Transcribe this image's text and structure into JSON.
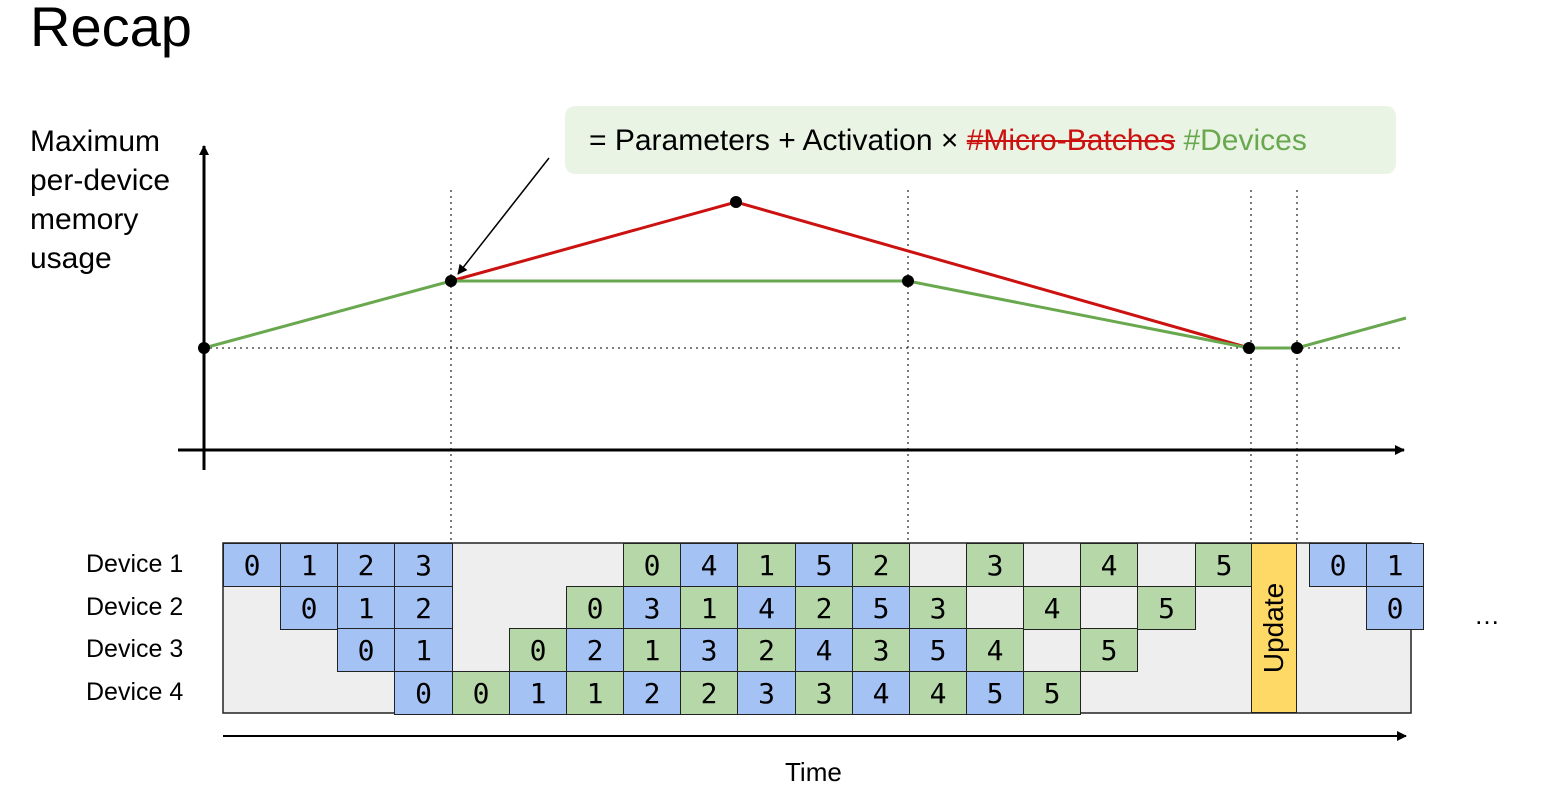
{
  "title": "Recap",
  "y_axis_label": "Maximum\nper-device\nmemory\nusage",
  "formula": {
    "prefix": "= Parameters + Activation × ",
    "struck": "#Micro-Batches",
    "replacement": "#Devices"
  },
  "colors": {
    "forward": "#a4c2f4",
    "backward": "#b6d7a8",
    "update": "#ffd966",
    "red_line": "#cc1111",
    "green_line": "#6aa84f",
    "formula_bg": "#eaf4e4"
  },
  "schedule": {
    "devices": [
      "Device 1",
      "Device 2",
      "Device 3",
      "Device 4"
    ],
    "update_label": "Update",
    "ellipsis": "…",
    "time_label": "Time",
    "rows": [
      [
        {
          "s": 0,
          "t": "F",
          "v": "0"
        },
        {
          "s": 1,
          "t": "F",
          "v": "1"
        },
        {
          "s": 2,
          "t": "F",
          "v": "2"
        },
        {
          "s": 3,
          "t": "F",
          "v": "3"
        },
        {
          "s": 7,
          "t": "B",
          "v": "0"
        },
        {
          "s": 8,
          "t": "F",
          "v": "4"
        },
        {
          "s": 9,
          "t": "B",
          "v": "1"
        },
        {
          "s": 10,
          "t": "F",
          "v": "5"
        },
        {
          "s": 11,
          "t": "B",
          "v": "2"
        },
        {
          "s": 13,
          "t": "B",
          "v": "3"
        },
        {
          "s": 15,
          "t": "B",
          "v": "4"
        },
        {
          "s": 17,
          "t": "B",
          "v": "5"
        },
        {
          "s": 19,
          "t": "F",
          "v": "0"
        },
        {
          "s": 20,
          "t": "F",
          "v": "1"
        }
      ],
      [
        {
          "s": 1,
          "t": "F",
          "v": "0"
        },
        {
          "s": 2,
          "t": "F",
          "v": "1"
        },
        {
          "s": 3,
          "t": "F",
          "v": "2"
        },
        {
          "s": 6,
          "t": "B",
          "v": "0"
        },
        {
          "s": 7,
          "t": "F",
          "v": "3"
        },
        {
          "s": 8,
          "t": "B",
          "v": "1"
        },
        {
          "s": 9,
          "t": "F",
          "v": "4"
        },
        {
          "s": 10,
          "t": "B",
          "v": "2"
        },
        {
          "s": 11,
          "t": "F",
          "v": "5"
        },
        {
          "s": 12,
          "t": "B",
          "v": "3"
        },
        {
          "s": 14,
          "t": "B",
          "v": "4"
        },
        {
          "s": 16,
          "t": "B",
          "v": "5"
        },
        {
          "s": 20,
          "t": "F",
          "v": "0"
        }
      ],
      [
        {
          "s": 2,
          "t": "F",
          "v": "0"
        },
        {
          "s": 3,
          "t": "F",
          "v": "1"
        },
        {
          "s": 5,
          "t": "B",
          "v": "0"
        },
        {
          "s": 6,
          "t": "F",
          "v": "2"
        },
        {
          "s": 7,
          "t": "B",
          "v": "1"
        },
        {
          "s": 8,
          "t": "F",
          "v": "3"
        },
        {
          "s": 9,
          "t": "B",
          "v": "2"
        },
        {
          "s": 10,
          "t": "F",
          "v": "4"
        },
        {
          "s": 11,
          "t": "B",
          "v": "3"
        },
        {
          "s": 12,
          "t": "F",
          "v": "5"
        },
        {
          "s": 13,
          "t": "B",
          "v": "4"
        },
        {
          "s": 15,
          "t": "B",
          "v": "5"
        }
      ],
      [
        {
          "s": 3,
          "t": "F",
          "v": "0"
        },
        {
          "s": 4,
          "t": "B",
          "v": "0"
        },
        {
          "s": 5,
          "t": "F",
          "v": "1"
        },
        {
          "s": 6,
          "t": "B",
          "v": "1"
        },
        {
          "s": 7,
          "t": "F",
          "v": "2"
        },
        {
          "s": 8,
          "t": "B",
          "v": "2"
        },
        {
          "s": 9,
          "t": "F",
          "v": "3"
        },
        {
          "s": 10,
          "t": "B",
          "v": "3"
        },
        {
          "s": 11,
          "t": "F",
          "v": "4"
        },
        {
          "s": 12,
          "t": "B",
          "v": "4"
        },
        {
          "s": 13,
          "t": "F",
          "v": "5"
        },
        {
          "s": 14,
          "t": "B",
          "v": "5"
        }
      ]
    ]
  }
}
